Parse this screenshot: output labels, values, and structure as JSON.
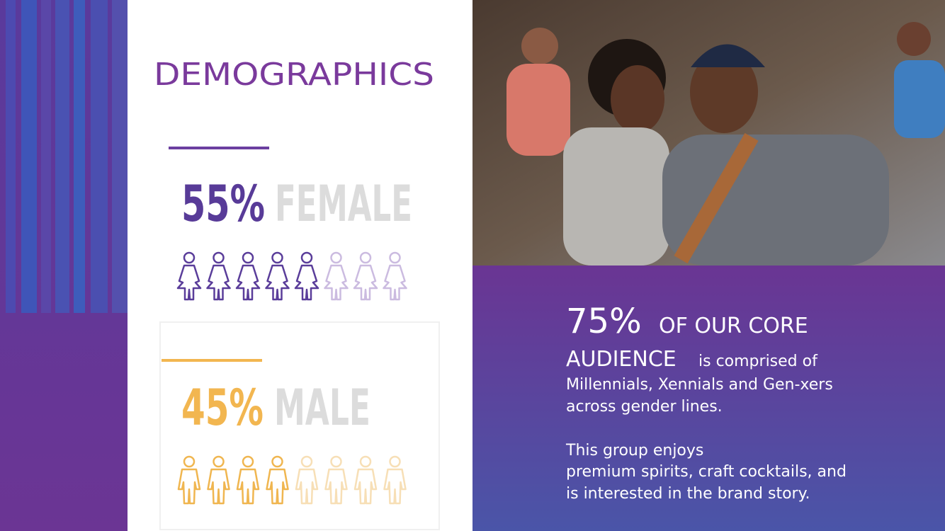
{
  "header": {
    "title": "DEMOGRAPHICS"
  },
  "female": {
    "percent": "55%",
    "label": "FEMALE"
  },
  "male": {
    "percent": "45%",
    "label": "MALE"
  },
  "audience": {
    "percent": "75%",
    "heading_line1": "OF OUR CORE",
    "heading_line2": "AUDIENCE",
    "lines": [
      "is comprised of",
      "Millennials, Xennials and Gen-xers",
      "across gender lines."
    ],
    "paragraph2": [
      "This group enjoys",
      "premium spirits, craft cocktails, and",
      "is interested in the brand story."
    ]
  }
}
